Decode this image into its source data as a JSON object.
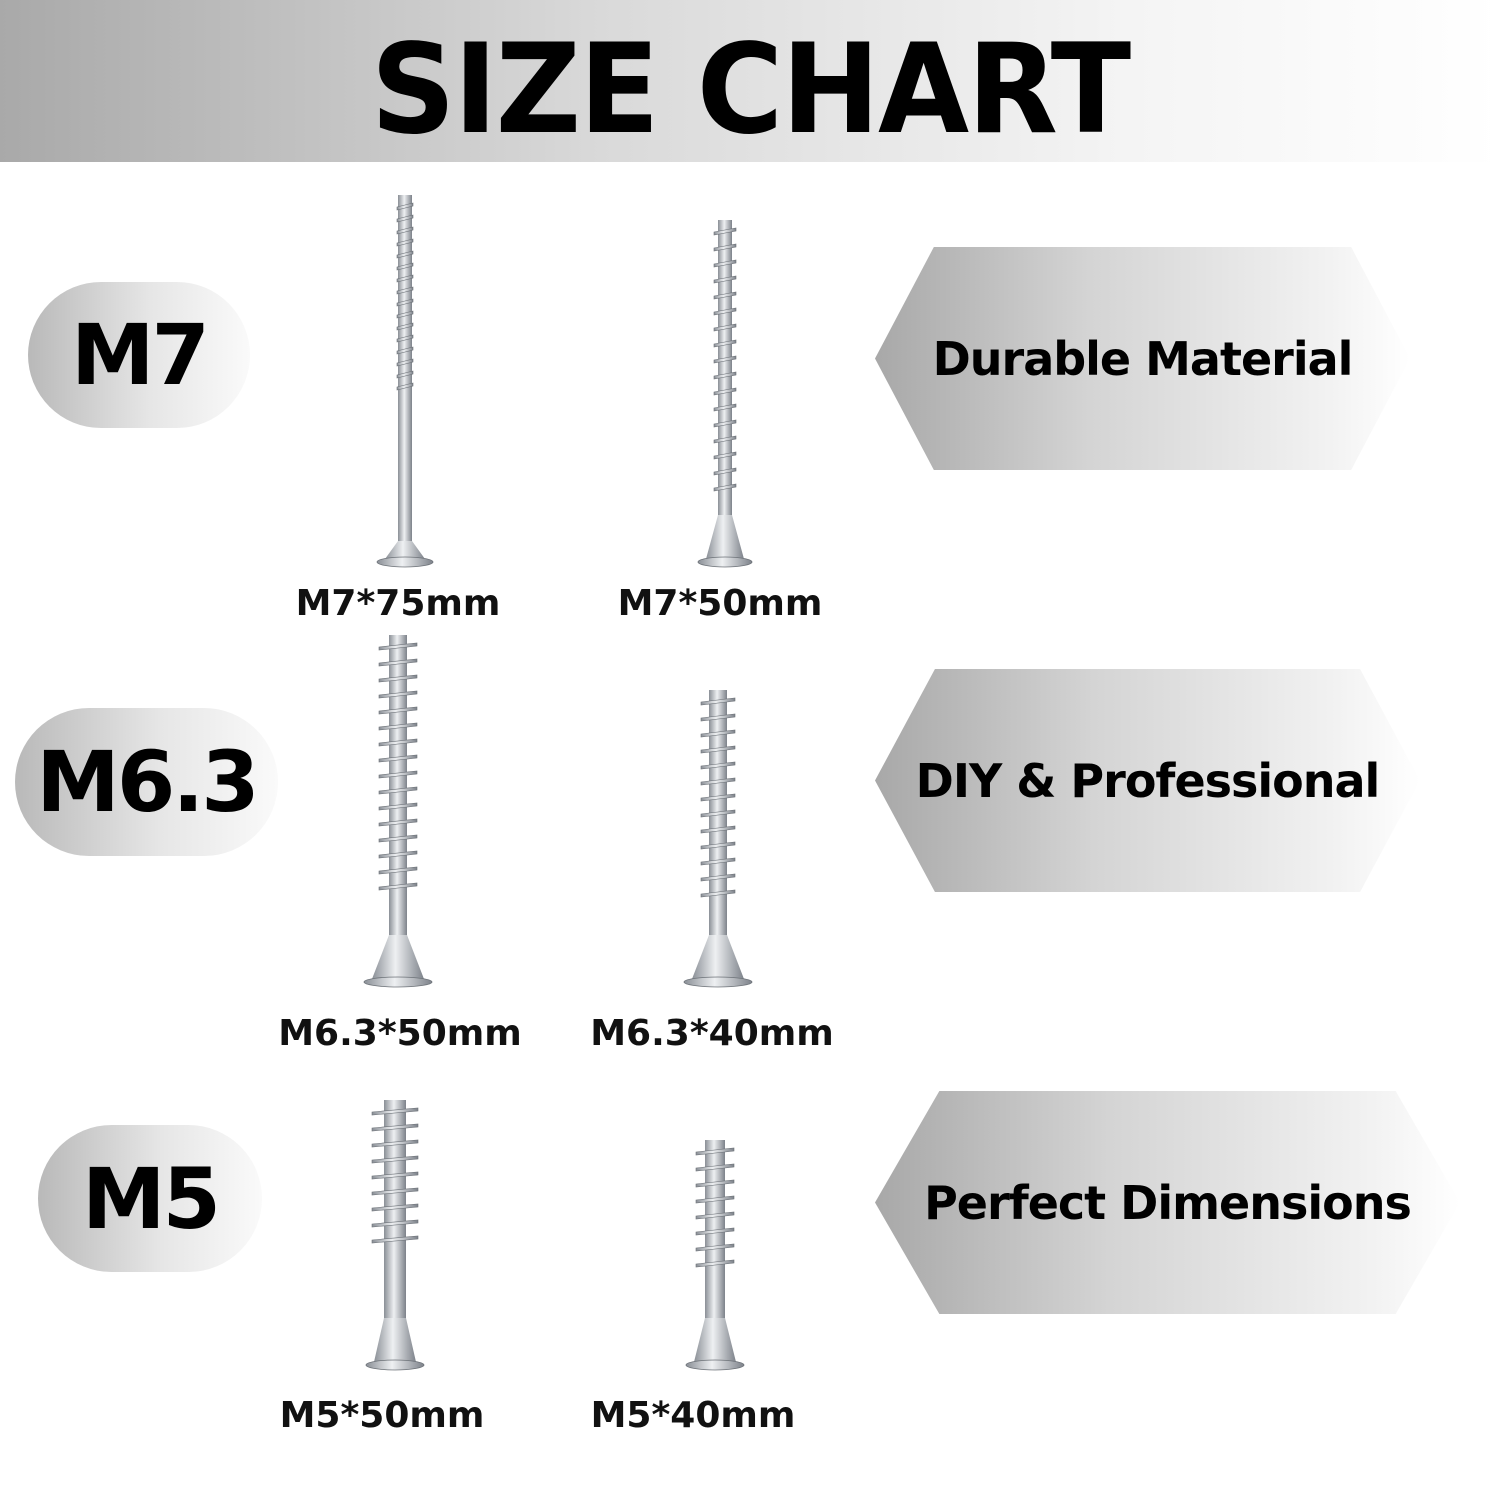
{
  "title": "SIZE CHART",
  "groups": [
    {
      "size": "M7",
      "feature": "Durable Material",
      "screws": [
        "M7*75mm",
        "M7*50mm"
      ]
    },
    {
      "size": "M6.3",
      "feature": "DIY & Professional",
      "screws": [
        "M6.3*50mm",
        "M6.3*40mm"
      ]
    },
    {
      "size": "M5",
      "feature": "Perfect Dimensions",
      "screws": [
        "M5*50mm",
        "M5*40mm"
      ]
    }
  ]
}
